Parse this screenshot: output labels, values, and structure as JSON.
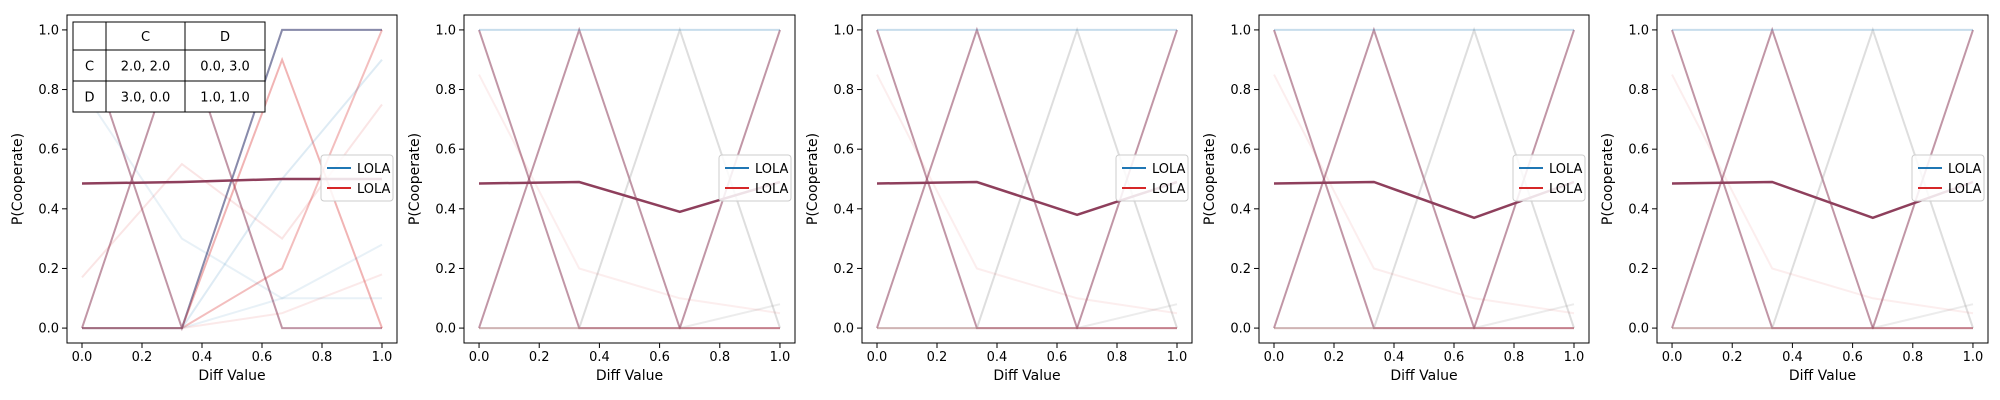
{
  "figure": {
    "payoff_table": {
      "col_headers": [
        "",
        "C",
        "D"
      ],
      "rows": [
        {
          "label": "C",
          "cells": [
            "2.0, 2.0",
            "0.0, 3.0"
          ]
        },
        {
          "label": "D",
          "cells": [
            "3.0, 0.0",
            "1.0, 1.0"
          ]
        }
      ]
    },
    "colors": {
      "blue": "#1f77b4",
      "red": "#d62728",
      "mix": "#8e3f5c"
    }
  },
  "chart_data": [
    {
      "type": "line",
      "xlabel": "Diff Value",
      "ylabel": "P(Cooperate)",
      "xlim": [
        -0.05,
        1.05
      ],
      "ylim": [
        -0.05,
        1.05
      ],
      "xticks": [
        "0.0",
        "0.2",
        "0.4",
        "0.6",
        "0.8",
        "1.0"
      ],
      "yticks": [
        "0.0",
        "0.2",
        "0.4",
        "0.6",
        "0.8",
        "1.0"
      ],
      "legend": {
        "placement": "center-right",
        "entries": [
          {
            "label": "LOLA",
            "color": "#1f77b4"
          },
          {
            "label": "LOLA",
            "color": "#d62728"
          }
        ]
      },
      "x": [
        0,
        0.333,
        0.667,
        1.0
      ],
      "mean_series": [
        {
          "color": "#8e3f5c",
          "values": [
            0.485,
            0.49,
            0.5,
            0.5
          ]
        }
      ],
      "background_series": [
        {
          "color": "#8e3f5c",
          "opacity": 0.55,
          "values": [
            1.0,
            0.0,
            1.0,
            1.0
          ]
        },
        {
          "color": "#8e3f5c",
          "opacity": 0.55,
          "values": [
            0.0,
            1.0,
            0.0,
            0.0
          ]
        },
        {
          "color": "#1f77b4",
          "opacity": 0.35,
          "values": [
            0.0,
            0.0,
            1.0,
            1.0
          ]
        },
        {
          "color": "#d62728",
          "opacity": 0.35,
          "values": [
            0.0,
            0.0,
            0.9,
            0.0
          ]
        },
        {
          "color": "#d62728",
          "opacity": 0.3,
          "values": [
            0.0,
            0.0,
            0.2,
            1.0
          ]
        },
        {
          "color": "#1f77b4",
          "opacity": 0.15,
          "values": [
            0.0,
            0.0,
            0.5,
            0.9
          ]
        },
        {
          "color": "#d62728",
          "opacity": 0.12,
          "values": [
            0.17,
            0.55,
            0.3,
            0.75
          ]
        },
        {
          "color": "#1f77b4",
          "opacity": 0.1,
          "values": [
            0.8,
            0.3,
            0.1,
            0.28
          ]
        },
        {
          "color": "#d62728",
          "opacity": 0.1,
          "values": [
            0.0,
            0.0,
            0.05,
            0.18
          ]
        },
        {
          "color": "#1f77b4",
          "opacity": 0.1,
          "values": [
            0.0,
            0.0,
            0.1,
            0.1
          ]
        }
      ],
      "table": true
    },
    {
      "type": "line",
      "xlabel": "Diff Value",
      "ylabel": "P(Cooperate)",
      "xlim": [
        -0.05,
        1.05
      ],
      "ylim": [
        -0.05,
        1.05
      ],
      "xticks": [
        "0.0",
        "0.2",
        "0.4",
        "0.6",
        "0.8",
        "1.0"
      ],
      "yticks": [
        "0.0",
        "0.2",
        "0.4",
        "0.6",
        "0.8",
        "1.0"
      ],
      "legend": {
        "placement": "center-right",
        "entries": [
          {
            "label": "LOLA",
            "color": "#1f77b4"
          },
          {
            "label": "LOLA",
            "color": "#d62728"
          }
        ]
      },
      "x": [
        0,
        0.333,
        0.667,
        1.0
      ],
      "mean_series": [
        {
          "color": "#8e3f5c",
          "values": [
            0.485,
            0.49,
            0.39,
            0.49
          ]
        }
      ],
      "background_series": [
        {
          "color": "#8e3f5c",
          "opacity": 0.55,
          "values": [
            1.0,
            0.0,
            0.0,
            1.0
          ]
        },
        {
          "color": "#8e3f5c",
          "opacity": 0.55,
          "values": [
            0.0,
            1.0,
            0.0,
            0.0
          ]
        },
        {
          "color": "#a0a0a0",
          "opacity": 0.35,
          "values": [
            0.0,
            0.0,
            1.0,
            0.0
          ]
        },
        {
          "color": "#1f77b4",
          "opacity": 0.25,
          "values": [
            1.0,
            1.0,
            1.0,
            1.0
          ]
        },
        {
          "color": "#d62728",
          "opacity": 0.2,
          "values": [
            0.0,
            0.0,
            0.0,
            0.0
          ]
        },
        {
          "color": "#a0a0a0",
          "opacity": 0.2,
          "values": [
            0.0,
            0.0,
            0.0,
            0.08
          ]
        },
        {
          "color": "#d62728",
          "opacity": 0.08,
          "values": [
            0.85,
            0.2,
            0.1,
            0.05
          ]
        }
      ],
      "table": false
    },
    {
      "type": "line",
      "xlabel": "Diff Value",
      "ylabel": "P(Cooperate)",
      "xlim": [
        -0.05,
        1.05
      ],
      "ylim": [
        -0.05,
        1.05
      ],
      "xticks": [
        "0.0",
        "0.2",
        "0.4",
        "0.6",
        "0.8",
        "1.0"
      ],
      "yticks": [
        "0.0",
        "0.2",
        "0.4",
        "0.6",
        "0.8",
        "1.0"
      ],
      "legend": {
        "placement": "center-right",
        "entries": [
          {
            "label": "LOLA",
            "color": "#1f77b4"
          },
          {
            "label": "LOLA",
            "color": "#d62728"
          }
        ]
      },
      "x": [
        0,
        0.333,
        0.667,
        1.0
      ],
      "mean_series": [
        {
          "color": "#8e3f5c",
          "values": [
            0.485,
            0.49,
            0.38,
            0.49
          ]
        }
      ],
      "background_series": [
        {
          "color": "#8e3f5c",
          "opacity": 0.55,
          "values": [
            1.0,
            0.0,
            0.0,
            1.0
          ]
        },
        {
          "color": "#8e3f5c",
          "opacity": 0.55,
          "values": [
            0.0,
            1.0,
            0.0,
            0.0
          ]
        },
        {
          "color": "#a0a0a0",
          "opacity": 0.35,
          "values": [
            0.0,
            0.0,
            1.0,
            0.0
          ]
        },
        {
          "color": "#1f77b4",
          "opacity": 0.25,
          "values": [
            1.0,
            1.0,
            1.0,
            1.0
          ]
        },
        {
          "color": "#d62728",
          "opacity": 0.2,
          "values": [
            0.0,
            0.0,
            0.0,
            0.0
          ]
        },
        {
          "color": "#a0a0a0",
          "opacity": 0.2,
          "values": [
            0.0,
            0.0,
            0.0,
            0.08
          ]
        },
        {
          "color": "#d62728",
          "opacity": 0.08,
          "values": [
            0.85,
            0.2,
            0.1,
            0.05
          ]
        }
      ],
      "table": false
    },
    {
      "type": "line",
      "xlabel": "Diff Value",
      "ylabel": "P(Cooperate)",
      "xlim": [
        -0.05,
        1.05
      ],
      "ylim": [
        -0.05,
        1.05
      ],
      "xticks": [
        "0.0",
        "0.2",
        "0.4",
        "0.6",
        "0.8",
        "1.0"
      ],
      "yticks": [
        "0.0",
        "0.2",
        "0.4",
        "0.6",
        "0.8",
        "1.0"
      ],
      "legend": {
        "placement": "center-right",
        "entries": [
          {
            "label": "LOLA",
            "color": "#1f77b4"
          },
          {
            "label": "LOLA",
            "color": "#d62728"
          }
        ]
      },
      "x": [
        0,
        0.333,
        0.667,
        1.0
      ],
      "mean_series": [
        {
          "color": "#8e3f5c",
          "values": [
            0.485,
            0.49,
            0.37,
            0.49
          ]
        }
      ],
      "background_series": [
        {
          "color": "#8e3f5c",
          "opacity": 0.55,
          "values": [
            1.0,
            0.0,
            0.0,
            1.0
          ]
        },
        {
          "color": "#8e3f5c",
          "opacity": 0.55,
          "values": [
            0.0,
            1.0,
            0.0,
            0.0
          ]
        },
        {
          "color": "#a0a0a0",
          "opacity": 0.35,
          "values": [
            0.0,
            0.0,
            1.0,
            0.0
          ]
        },
        {
          "color": "#1f77b4",
          "opacity": 0.25,
          "values": [
            1.0,
            1.0,
            1.0,
            1.0
          ]
        },
        {
          "color": "#d62728",
          "opacity": 0.2,
          "values": [
            0.0,
            0.0,
            0.0,
            0.0
          ]
        },
        {
          "color": "#a0a0a0",
          "opacity": 0.2,
          "values": [
            0.0,
            0.0,
            0.0,
            0.08
          ]
        },
        {
          "color": "#d62728",
          "opacity": 0.08,
          "values": [
            0.85,
            0.2,
            0.1,
            0.05
          ]
        }
      ],
      "table": false
    },
    {
      "type": "line",
      "xlabel": "Diff Value",
      "ylabel": "P(Cooperate)",
      "xlim": [
        -0.05,
        1.05
      ],
      "ylim": [
        -0.05,
        1.05
      ],
      "xticks": [
        "0.0",
        "0.2",
        "0.4",
        "0.6",
        "0.8",
        "1.0"
      ],
      "yticks": [
        "0.0",
        "0.2",
        "0.4",
        "0.6",
        "0.8",
        "1.0"
      ],
      "legend": {
        "placement": "center-right",
        "entries": [
          {
            "label": "LOLA",
            "color": "#1f77b4"
          },
          {
            "label": "LOLA",
            "color": "#d62728"
          }
        ]
      },
      "x": [
        0,
        0.333,
        0.667,
        1.0
      ],
      "mean_series": [
        {
          "color": "#8e3f5c",
          "values": [
            0.485,
            0.49,
            0.37,
            0.49
          ]
        }
      ],
      "background_series": [
        {
          "color": "#8e3f5c",
          "opacity": 0.55,
          "values": [
            1.0,
            0.0,
            0.0,
            1.0
          ]
        },
        {
          "color": "#8e3f5c",
          "opacity": 0.55,
          "values": [
            0.0,
            1.0,
            0.0,
            0.0
          ]
        },
        {
          "color": "#a0a0a0",
          "opacity": 0.35,
          "values": [
            0.0,
            0.0,
            1.0,
            0.0
          ]
        },
        {
          "color": "#1f77b4",
          "opacity": 0.25,
          "values": [
            1.0,
            1.0,
            1.0,
            1.0
          ]
        },
        {
          "color": "#d62728",
          "opacity": 0.2,
          "values": [
            0.0,
            0.0,
            0.0,
            0.0
          ]
        },
        {
          "color": "#a0a0a0",
          "opacity": 0.2,
          "values": [
            0.0,
            0.0,
            0.0,
            0.08
          ]
        },
        {
          "color": "#d62728",
          "opacity": 0.08,
          "values": [
            0.85,
            0.2,
            0.1,
            0.05
          ]
        }
      ],
      "table": false
    }
  ]
}
